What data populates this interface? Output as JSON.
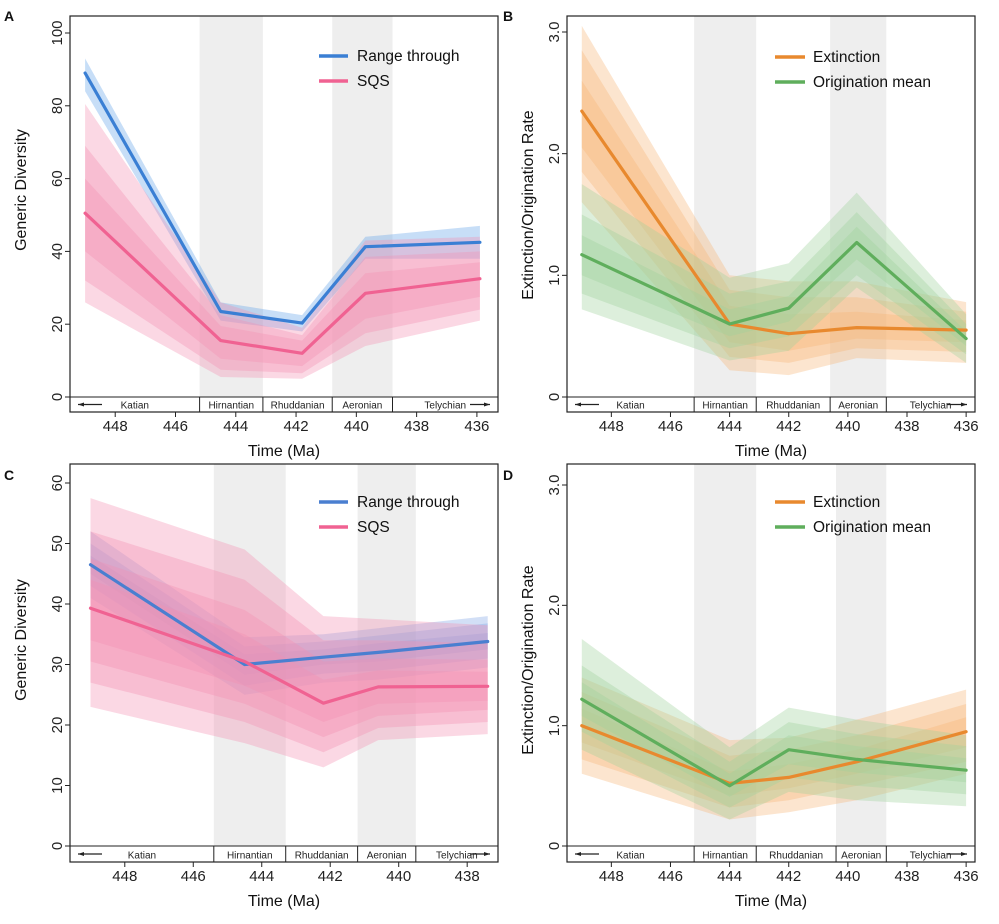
{
  "chart_data": [
    {
      "panel": "A",
      "type": "line",
      "subtype": "line with nested confidence bands",
      "ylabel": "Generic Diversity",
      "xlabel": "Time (Ma)",
      "ylim": [
        0,
        100
      ],
      "xlim": [
        449.5,
        435.3
      ],
      "x_ticks": [
        448,
        446,
        444,
        442,
        440,
        438,
        436
      ],
      "y_ticks": [
        0,
        20,
        40,
        60,
        80,
        100
      ],
      "y_tick_labels": [
        "0",
        "20",
        "40",
        "60",
        "80",
        "100"
      ],
      "x": [
        449,
        444.5,
        441.8,
        439.7,
        435.9
      ],
      "legend_position": "top-right",
      "series": [
        {
          "name": "Range through",
          "color": "#3a7fd4",
          "band_color": "#5ea0e8",
          "values": [
            89,
            23.5,
            20.3,
            41.3,
            42.5
          ],
          "bands": [
            {
              "lower": [
                84,
                21,
                18,
                38,
                38
              ],
              "upper": [
                93,
                26,
                22.5,
                44,
                47
              ]
            }
          ]
        },
        {
          "name": "SQS",
          "color": "#f06292",
          "band_color": "#f48fb1",
          "values": [
            50.5,
            15.5,
            12,
            28.5,
            32.5
          ],
          "bands": [
            {
              "lower": [
                26,
                5.5,
                5,
                14,
                21
              ],
              "upper": [
                80.5,
                26,
                19,
                43,
                44
              ]
            },
            {
              "lower": [
                32,
                7.5,
                6.5,
                17.5,
                24
              ],
              "upper": [
                69,
                22.5,
                17,
                38.5,
                40
              ]
            },
            {
              "lower": [
                40,
                10.5,
                8.5,
                21.5,
                27.5
              ],
              "upper": [
                60,
                19.5,
                15.5,
                34,
                37
              ]
            }
          ]
        }
      ],
      "stages": [
        "Katian",
        "Hirnantian",
        "Rhuddanian",
        "Aeronian",
        "Telychian"
      ],
      "stage_bounds": [
        449.8,
        445.2,
        443.1,
        440.8,
        438.8,
        435.2
      ],
      "shaded_intervals": [
        [
          445.2,
          443.1
        ],
        [
          440.8,
          438.8
        ]
      ]
    },
    {
      "panel": "B",
      "type": "line",
      "subtype": "line with nested confidence bands",
      "ylabel": "Extinction/Origination Rate",
      "xlabel": "Time (Ma)",
      "ylim": [
        0,
        3.0
      ],
      "xlim": [
        449.5,
        435.7
      ],
      "x_ticks": [
        448,
        446,
        444,
        442,
        440,
        438,
        436
      ],
      "y_ticks": [
        0,
        1,
        2,
        3
      ],
      "y_tick_labels": [
        "0",
        "1.0",
        "2.0",
        "3.0"
      ],
      "x": [
        449,
        444,
        442,
        439.7,
        436
      ],
      "legend_position": "top-right",
      "series": [
        {
          "name": "Extinction",
          "color": "#e8892e",
          "band_color": "#f5b575",
          "values": [
            2.35,
            0.6,
            0.52,
            0.57,
            0.55
          ],
          "bands": [
            {
              "lower": [
                1.6,
                0.22,
                0.18,
                0.32,
                0.28
              ],
              "upper": [
                3.05,
                1.0,
                0.95,
                0.95,
                0.78
              ]
            },
            {
              "lower": [
                1.85,
                0.33,
                0.28,
                0.4,
                0.37
              ],
              "upper": [
                2.85,
                0.88,
                0.82,
                0.82,
                0.7
              ]
            },
            {
              "lower": [
                2.05,
                0.45,
                0.38,
                0.48,
                0.45
              ],
              "upper": [
                2.6,
                0.75,
                0.68,
                0.7,
                0.63
              ]
            }
          ]
        },
        {
          "name": "Origination mean",
          "color": "#5fae5c",
          "band_color": "#9dd09a",
          "values": [
            1.17,
            0.6,
            0.73,
            1.27,
            0.48
          ],
          "bands": [
            {
              "lower": [
                0.72,
                0.3,
                0.38,
                0.9,
                0.28
              ],
              "upper": [
                1.75,
                0.98,
                1.1,
                1.68,
                0.68
              ]
            },
            {
              "lower": [
                0.85,
                0.4,
                0.5,
                1.0,
                0.35
              ],
              "upper": [
                1.5,
                0.85,
                0.95,
                1.52,
                0.6
              ]
            },
            {
              "lower": [
                1.0,
                0.5,
                0.62,
                1.13,
                0.42
              ],
              "upper": [
                1.33,
                0.72,
                0.83,
                1.4,
                0.54
              ]
            }
          ]
        }
      ],
      "stages": [
        "Katian",
        "Hirnantian",
        "Rhuddanian",
        "Aeronian",
        "Telychian"
      ],
      "stage_bounds": [
        449.8,
        445.2,
        443.1,
        440.6,
        438.7,
        435.5
      ],
      "shaded_intervals": [
        [
          445.2,
          443.1
        ],
        [
          440.6,
          438.7
        ]
      ]
    },
    {
      "panel": "C",
      "type": "line",
      "subtype": "line with nested confidence bands",
      "ylabel": "Generic Diversity",
      "xlabel": "Time (Ma)",
      "ylim": [
        0,
        60
      ],
      "xlim": [
        449.6,
        437.1
      ],
      "x_ticks": [
        448,
        446,
        444,
        442,
        440,
        438
      ],
      "y_ticks": [
        0,
        10,
        20,
        30,
        40,
        50,
        60
      ],
      "y_tick_labels": [
        "0",
        "10",
        "20",
        "30",
        "40",
        "50",
        "60"
      ],
      "x": [
        449,
        444.5,
        442.2,
        440.6,
        437.4
      ],
      "legend_position": "top-right",
      "series": [
        {
          "name": "Range through",
          "color": "#4a7fd0",
          "band_color": "#7fa3e6",
          "values": [
            46.5,
            30,
            31.2,
            32,
            33.8
          ],
          "bands": [
            {
              "lower": [
                41,
                25,
                27,
                27.5,
                29.5
              ],
              "upper": [
                52,
                34.5,
                35,
                36,
                38
              ]
            },
            {
              "lower": [
                43,
                26.5,
                28.5,
                29,
                31
              ],
              "upper": [
                50,
                33,
                33.8,
                34.8,
                36.8
              ]
            },
            {
              "lower": [
                45,
                28.3,
                30,
                30.5,
                32.5
              ],
              "upper": [
                48,
                31.7,
                32.5,
                33.5,
                35.2
              ]
            }
          ]
        },
        {
          "name": "SQS",
          "color": "#f06292",
          "band_color": "#f48fb1",
          "values": [
            39.3,
            30.5,
            23.6,
            26.3,
            26.4
          ],
          "bands": [
            {
              "lower": [
                23,
                17,
                13,
                17.5,
                18.5
              ],
              "upper": [
                57.5,
                49,
                38,
                37.5,
                36.5
              ]
            },
            {
              "lower": [
                27,
                20.5,
                15.5,
                19.5,
                20.5
              ],
              "upper": [
                52,
                44,
                34,
                34,
                33.5
              ]
            },
            {
              "lower": [
                30.5,
                23.5,
                18,
                21.5,
                22.5
              ],
              "upper": [
                47.5,
                39,
                30.5,
                31,
                30.8
              ]
            },
            {
              "lower": [
                34,
                26.5,
                20.5,
                23.5,
                24
              ],
              "upper": [
                44,
                35,
                27.5,
                29,
                28.8
              ]
            }
          ]
        }
      ],
      "stages": [
        "Katian",
        "Hirnantian",
        "Rhuddanian",
        "Aeronian",
        "Telychian"
      ],
      "stage_bounds": [
        449.7,
        445.4,
        443.3,
        441.2,
        439.5,
        436.9
      ],
      "shaded_intervals": [
        [
          445.4,
          443.3
        ],
        [
          441.2,
          439.5
        ]
      ]
    },
    {
      "panel": "D",
      "type": "line",
      "subtype": "line with nested confidence bands",
      "ylabel": "Extinction/Origination Rate",
      "xlabel": "Time (Ma)",
      "ylim": [
        0,
        3.0
      ],
      "xlim": [
        449.5,
        435.7
      ],
      "x_ticks": [
        448,
        446,
        444,
        442,
        440,
        438,
        436
      ],
      "y_ticks": [
        0,
        1,
        2,
        3
      ],
      "y_tick_labels": [
        "0",
        "1.0",
        "2.0",
        "3.0"
      ],
      "x": [
        449,
        444,
        442,
        439.7,
        436
      ],
      "legend_position": "top-right",
      "series": [
        {
          "name": "Extinction",
          "color": "#e8892e",
          "band_color": "#f5b575",
          "values": [
            1.0,
            0.52,
            0.57,
            0.7,
            0.95
          ],
          "bands": [
            {
              "lower": [
                0.6,
                0.22,
                0.28,
                0.38,
                0.6
              ],
              "upper": [
                1.4,
                0.88,
                0.9,
                1.05,
                1.3
              ]
            },
            {
              "lower": [
                0.72,
                0.32,
                0.38,
                0.5,
                0.7
              ],
              "upper": [
                1.28,
                0.75,
                0.8,
                0.92,
                1.18
              ]
            },
            {
              "lower": [
                0.86,
                0.42,
                0.48,
                0.6,
                0.82
              ],
              "upper": [
                1.14,
                0.62,
                0.68,
                0.8,
                1.07
              ]
            }
          ]
        },
        {
          "name": "Origination mean",
          "color": "#5fae5c",
          "band_color": "#9dd09a",
          "values": [
            1.22,
            0.5,
            0.8,
            0.72,
            0.63
          ],
          "bands": [
            {
              "lower": [
                0.8,
                0.22,
                0.45,
                0.38,
                0.33
              ],
              "upper": [
                1.72,
                0.82,
                1.15,
                1.05,
                0.92
              ]
            },
            {
              "lower": [
                0.95,
                0.32,
                0.57,
                0.5,
                0.43
              ],
              "upper": [
                1.5,
                0.7,
                1.03,
                0.93,
                0.83
              ]
            },
            {
              "lower": [
                1.08,
                0.41,
                0.68,
                0.61,
                0.53
              ],
              "upper": [
                1.36,
                0.6,
                0.92,
                0.83,
                0.73
              ]
            }
          ]
        }
      ],
      "stages": [
        "Katian",
        "Hirnantian",
        "Rhuddanian",
        "Aeronian",
        "Telychian"
      ],
      "stage_bounds": [
        449.8,
        445.2,
        443.1,
        440.4,
        438.7,
        435.5
      ],
      "shaded_intervals": [
        [
          445.2,
          443.1
        ],
        [
          440.4,
          438.7
        ]
      ]
    }
  ]
}
